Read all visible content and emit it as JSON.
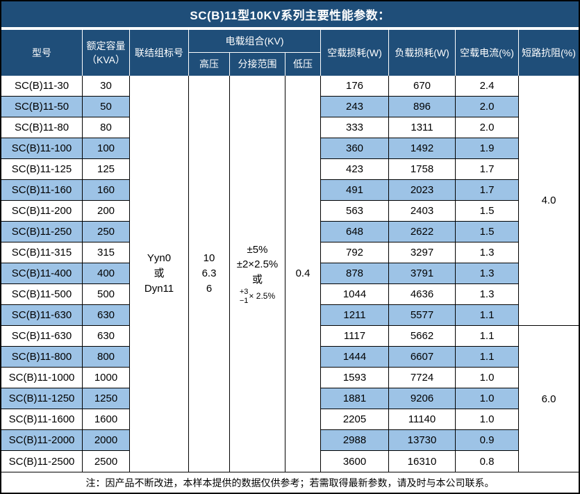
{
  "title": "SC(B)11型10KV系列主要性能参数：",
  "header": {
    "model": "型号",
    "capacity_line1": "额定容量",
    "capacity_line2": "（KVA）",
    "vector_group": "联结组标号",
    "voltage_combo": "电载组合(KV)",
    "hv": "高压",
    "tap_range": "分接范围",
    "lv": "低压",
    "no_load_loss": "空载损耗(W)",
    "load_loss": "负载损耗(W)",
    "no_load_current": "空载电流(%)",
    "impedance": "短路抗阻(%)"
  },
  "merged": {
    "vector_group_lines": [
      "Yyn0",
      "或",
      "Dyn11"
    ],
    "hv_lines": [
      "10",
      "6.3",
      "6"
    ],
    "tap": {
      "line1": "±5%",
      "line2": "±2×2.5%",
      "line3": "或",
      "stack_top": "+3",
      "stack_bottom": "−1",
      "stack_suffix": "× 2.5%"
    },
    "lv_value": "0.4",
    "impedance_group1": "4.0",
    "impedance_group2": "6.0"
  },
  "rows": [
    {
      "model": "SC(B)11-30",
      "kva": "30",
      "p0": "176",
      "pk": "670",
      "i0": "2.4"
    },
    {
      "model": "SC(B)11-50",
      "kva": "50",
      "p0": "243",
      "pk": "896",
      "i0": "2.0"
    },
    {
      "model": "SC(B)11-80",
      "kva": "80",
      "p0": "333",
      "pk": "1311",
      "i0": "2.0"
    },
    {
      "model": "SC(B)11-100",
      "kva": "100",
      "p0": "360",
      "pk": "1492",
      "i0": "1.9"
    },
    {
      "model": "SC(B)11-125",
      "kva": "125",
      "p0": "423",
      "pk": "1758",
      "i0": "1.7"
    },
    {
      "model": "SC(B)11-160",
      "kva": "160",
      "p0": "491",
      "pk": "2023",
      "i0": "1.7"
    },
    {
      "model": "SC(B)11-200",
      "kva": "200",
      "p0": "563",
      "pk": "2403",
      "i0": "1.5"
    },
    {
      "model": "SC(B)11-250",
      "kva": "250",
      "p0": "648",
      "pk": "2622",
      "i0": "1.5"
    },
    {
      "model": "SC(B)11-315",
      "kva": "315",
      "p0": "792",
      "pk": "3297",
      "i0": "1.3"
    },
    {
      "model": "SC(B)11-400",
      "kva": "400",
      "p0": "878",
      "pk": "3791",
      "i0": "1.3"
    },
    {
      "model": "SC(B)11-500",
      "kva": "500",
      "p0": "1044",
      "pk": "4636",
      "i0": "1.3"
    },
    {
      "model": "SC(B)11-630",
      "kva": "630",
      "p0": "1211",
      "pk": "5577",
      "i0": "1.1"
    },
    {
      "model": "SC(B)11-630",
      "kva": "630",
      "p0": "1117",
      "pk": "5662",
      "i0": "1.1"
    },
    {
      "model": "SC(B)11-800",
      "kva": "800",
      "p0": "1444",
      "pk": "6607",
      "i0": "1.1"
    },
    {
      "model": "SC(B)11-1000",
      "kva": "1000",
      "p0": "1593",
      "pk": "7724",
      "i0": "1.0"
    },
    {
      "model": "SC(B)11-1250",
      "kva": "1250",
      "p0": "1881",
      "pk": "9206",
      "i0": "1.0"
    },
    {
      "model": "SC(B)11-1600",
      "kva": "1600",
      "p0": "2205",
      "pk": "11140",
      "i0": "1.0"
    },
    {
      "model": "SC(B)11-2000",
      "kva": "2000",
      "p0": "2988",
      "pk": "13730",
      "i0": "0.9"
    },
    {
      "model": "SC(B)11-2500",
      "kva": "2500",
      "p0": "3600",
      "pk": "16310",
      "i0": "0.8"
    }
  ],
  "note": "注：因产品不断改进，本样本提供的数据仅供参考；若需取得最新参数，请及时与本公司联系。",
  "colors": {
    "header_bg": "#1F4E79",
    "row_alt": "#9DC3E6",
    "border": "#000000"
  }
}
